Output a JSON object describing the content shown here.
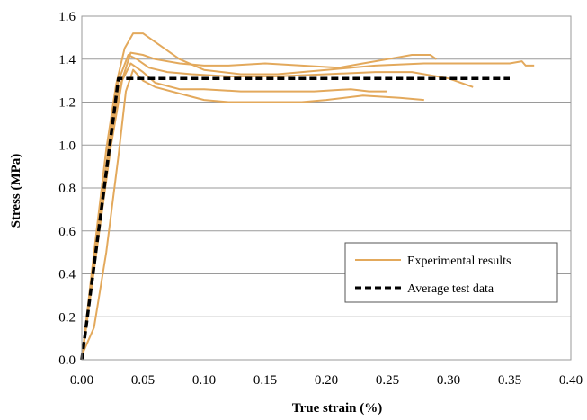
{
  "chart_data": {
    "type": "line",
    "xlabel": "True strain (%)",
    "ylabel": "Stress (MPa)",
    "xlim": [
      0,
      0.4
    ],
    "ylim": [
      0,
      1.6
    ],
    "x_ticks": [
      "0.00",
      "0.05",
      "0.10",
      "0.15",
      "0.20",
      "0.25",
      "0.30",
      "0.35",
      "0.40"
    ],
    "y_ticks": [
      "0.0",
      "0.2",
      "0.4",
      "0.6",
      "0.8",
      "1.0",
      "1.2",
      "1.4",
      "1.6"
    ],
    "grid": "horizontal",
    "legend_position": "bottom-right",
    "legend": [
      {
        "label": "Experimental results",
        "style": "solid",
        "color": "#E3A95C"
      },
      {
        "label": "Average test data",
        "style": "dashed",
        "color": "#000000"
      }
    ],
    "series": [
      {
        "name": "Experimental results",
        "color": "#E3A95C",
        "style": "solid",
        "curves": [
          [
            [
              0,
              0
            ],
            [
              0.01,
              0.5
            ],
            [
              0.02,
              0.98
            ],
            [
              0.028,
              1.28
            ],
            [
              0.035,
              1.45
            ],
            [
              0.042,
              1.52
            ],
            [
              0.05,
              1.52
            ],
            [
              0.06,
              1.48
            ],
            [
              0.08,
              1.4
            ],
            [
              0.1,
              1.35
            ],
            [
              0.13,
              1.33
            ],
            [
              0.16,
              1.33
            ],
            [
              0.2,
              1.35
            ],
            [
              0.24,
              1.37
            ],
            [
              0.28,
              1.38
            ],
            [
              0.32,
              1.38
            ],
            [
              0.35,
              1.38
            ],
            [
              0.36,
              1.39
            ],
            [
              0.363,
              1.37
            ],
            [
              0.37,
              1.37
            ]
          ],
          [
            [
              0,
              0
            ],
            [
              0.012,
              0.52
            ],
            [
              0.022,
              1.0
            ],
            [
              0.03,
              1.3
            ],
            [
              0.038,
              1.42
            ],
            [
              0.045,
              1.4
            ],
            [
              0.055,
              1.36
            ],
            [
              0.07,
              1.34
            ],
            [
              0.09,
              1.33
            ],
            [
              0.12,
              1.32
            ],
            [
              0.16,
              1.32
            ],
            [
              0.2,
              1.33
            ],
            [
              0.24,
              1.34
            ],
            [
              0.27,
              1.34
            ],
            [
              0.3,
              1.31
            ],
            [
              0.31,
              1.29
            ],
            [
              0.32,
              1.27
            ]
          ],
          [
            [
              0,
              0
            ],
            [
              0.01,
              0.45
            ],
            [
              0.02,
              0.9
            ],
            [
              0.03,
              1.25
            ],
            [
              0.04,
              1.43
            ],
            [
              0.05,
              1.42
            ],
            [
              0.06,
              1.4
            ],
            [
              0.08,
              1.38
            ],
            [
              0.1,
              1.37
            ],
            [
              0.12,
              1.37
            ],
            [
              0.15,
              1.38
            ],
            [
              0.18,
              1.37
            ],
            [
              0.21,
              1.36
            ],
            [
              0.23,
              1.38
            ],
            [
              0.25,
              1.4
            ],
            [
              0.27,
              1.42
            ],
            [
              0.285,
              1.42
            ],
            [
              0.29,
              1.4
            ]
          ],
          [
            [
              0,
              0
            ],
            [
              0.012,
              0.5
            ],
            [
              0.024,
              1.0
            ],
            [
              0.033,
              1.3
            ],
            [
              0.04,
              1.38
            ],
            [
              0.05,
              1.34
            ],
            [
              0.06,
              1.29
            ],
            [
              0.08,
              1.26
            ],
            [
              0.1,
              1.26
            ],
            [
              0.13,
              1.25
            ],
            [
              0.16,
              1.25
            ],
            [
              0.19,
              1.25
            ],
            [
              0.22,
              1.26
            ],
            [
              0.235,
              1.25
            ],
            [
              0.25,
              1.25
            ]
          ],
          [
            [
              0,
              0.02
            ],
            [
              0.01,
              0.15
            ],
            [
              0.02,
              0.5
            ],
            [
              0.03,
              0.95
            ],
            [
              0.036,
              1.25
            ],
            [
              0.042,
              1.35
            ],
            [
              0.05,
              1.3
            ],
            [
              0.06,
              1.27
            ],
            [
              0.08,
              1.24
            ],
            [
              0.1,
              1.21
            ],
            [
              0.12,
              1.2
            ],
            [
              0.15,
              1.2
            ],
            [
              0.18,
              1.2
            ],
            [
              0.2,
              1.21
            ],
            [
              0.23,
              1.23
            ],
            [
              0.26,
              1.22
            ],
            [
              0.28,
              1.21
            ]
          ]
        ]
      },
      {
        "name": "Average test data",
        "color": "#000000",
        "style": "dashed",
        "curves": [
          [
            [
              0,
              0
            ],
            [
              0.03,
              1.31
            ],
            [
              0.35,
              1.31
            ]
          ]
        ]
      }
    ]
  }
}
